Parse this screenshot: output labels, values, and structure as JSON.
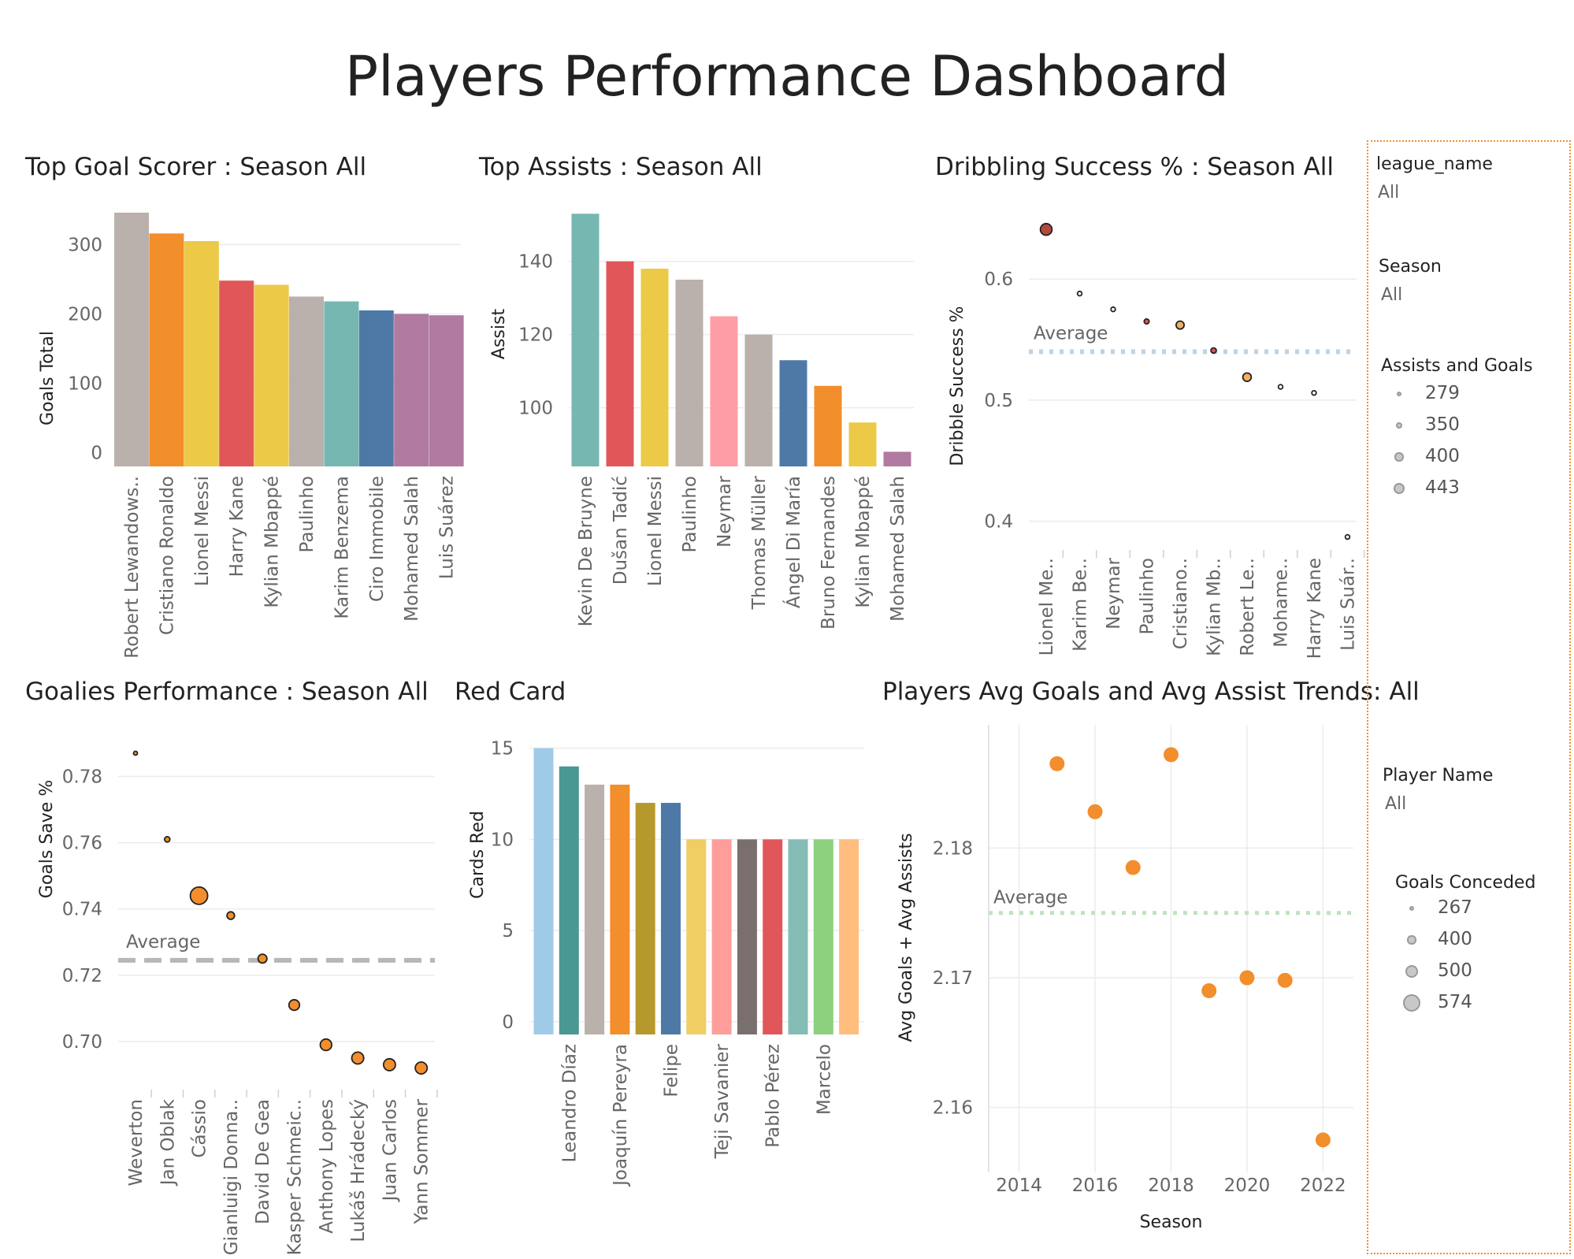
{
  "title": "Players Performance Dashboard",
  "colors": {
    "grid": "#ececec",
    "avg_blue": "#bcd4e6",
    "avg_gray": "#b7b7b7",
    "avg_green": "#bfe3bf",
    "dot_orange": "#f28e2b",
    "dot_red": "#b54a3c",
    "filter_border": "#f28e2b"
  },
  "filters": {
    "league": {
      "title": "league_name",
      "value": "All"
    },
    "season": {
      "title": "Season",
      "value": "All"
    },
    "assists_goals_legend": {
      "title": "Assists and Goals",
      "items": [
        "279",
        "350",
        "400",
        "443"
      ]
    },
    "player": {
      "title": "Player Name",
      "value": "All"
    },
    "goals_conceded_legend": {
      "title": "Goals Conceded",
      "items": [
        "267",
        "400",
        "500",
        "574"
      ]
    }
  },
  "chart_data": [
    {
      "id": "top-goal-scorer",
      "type": "bar",
      "title": "Top Goal Scorer : Season All",
      "ylabel": "Goals Total",
      "ylim": [
        -20,
        355
      ],
      "yticks": [
        "0",
        "100",
        "200",
        "300"
      ],
      "categories": [
        "Robert Lewandows..",
        "Cristiano Ronaldo",
        "Lionel Messi",
        "Harry Kane",
        "Kylian Mbappé",
        "Paulinho",
        "Karim Benzema",
        "Ciro Immobile",
        "Mohamed Salah",
        "Luis Suárez"
      ],
      "values": [
        346,
        316,
        305,
        248,
        242,
        225,
        218,
        205,
        200,
        198
      ],
      "colors": [
        "#bab0ac",
        "#f28e2b",
        "#edc948",
        "#e15759",
        "#edc948",
        "#bab0ac",
        "#76b7b2",
        "#4e79a7",
        "#b07aa1",
        "#b07aa1"
      ]
    },
    {
      "id": "top-assists",
      "type": "bar",
      "title": "Top Assists : Season All",
      "ylabel": "Assist",
      "ylim": [
        84,
        155
      ],
      "yticks": [
        "100",
        "120",
        "140"
      ],
      "categories": [
        "Kevin De Bruyne",
        "Dušan Tadić",
        "Lionel Messi",
        "Paulinho",
        "Neymar",
        "Thomas Müller",
        "Ángel Di María",
        "Bruno Fernandes",
        "Kylian Mbappé",
        "Mohamed Salah"
      ],
      "values": [
        153,
        140,
        138,
        135,
        125,
        120,
        113,
        106,
        96,
        88
      ],
      "colors": [
        "#76b7b2",
        "#e15759",
        "#edc948",
        "#bab0ac",
        "#ff9da7",
        "#bab0ac",
        "#4e79a7",
        "#f28e2b",
        "#edc948",
        "#b07aa1"
      ]
    },
    {
      "id": "dribbling-success",
      "type": "scatter",
      "title": "Dribbling Success % : Season All",
      "ylabel": "Dribble Success %",
      "ylim": [
        0.375,
        0.66
      ],
      "yticks": [
        "0.4",
        "0.5",
        "0.6"
      ],
      "categories": [
        "Lionel Me..",
        "Karim Be..",
        "Neymar",
        "Paulinho",
        "Cristiano..",
        "Kylian Mb..",
        "Robert Le..",
        "Mohame..",
        "Harry Kane",
        "Luis Suár.."
      ],
      "values": [
        0.641,
        0.588,
        0.575,
        0.565,
        0.562,
        0.541,
        0.519,
        0.511,
        0.506,
        0.387
      ],
      "sizes": [
        443,
        279,
        279,
        290,
        360,
        300,
        370,
        279,
        279,
        279
      ],
      "fills": [
        "#b54a3c",
        "#ffffff",
        "#ffffff",
        "#e15759",
        "#f0b060",
        "#e15759",
        "#f0b060",
        "#ffffff",
        "#ffffff",
        "#ffffff"
      ],
      "reference_line": {
        "label": "Average",
        "value": 0.54
      }
    },
    {
      "id": "goalies-performance",
      "type": "scatter",
      "title": "Goalies Performance  : Season All",
      "ylabel": "Goals Save %",
      "ylim": [
        0.685,
        0.792
      ],
      "yticks": [
        "0.70",
        "0.72",
        "0.74",
        "0.76",
        "0.78"
      ],
      "categories": [
        "Weverton",
        "Jan Oblak",
        "Cássio",
        "Gianluigi Donna..",
        "David De Gea",
        "Kasper Schmeic..",
        "Anthony Lopes",
        "Lukáš Hrádecký",
        "Juan Carlos",
        "Yann Sommer"
      ],
      "values": [
        0.787,
        0.761,
        0.744,
        0.738,
        0.725,
        0.711,
        0.699,
        0.695,
        0.693,
        0.692
      ],
      "sizes": [
        267,
        300,
        574,
        350,
        380,
        420,
        440,
        450,
        450,
        450
      ],
      "reference_line": {
        "label": "Average",
        "value": 0.7245
      }
    },
    {
      "id": "red-card",
      "type": "bar",
      "title": "Red Card",
      "ylabel": "Cards Red",
      "ylim": [
        -0.7,
        15.2
      ],
      "yticks": [
        "0",
        "5",
        "10",
        "15"
      ],
      "categories": [
        "",
        "Leandro Díaz",
        "",
        "Joaquín Pereyra",
        "",
        "Felipe",
        "",
        "Teji Savanier",
        "",
        "Pablo Pérez",
        "",
        "Marcelo",
        ""
      ],
      "values": [
        15,
        14,
        13,
        13,
        12,
        12,
        10,
        10,
        10,
        10,
        10,
        10,
        10
      ],
      "colors": [
        "#a0cbe8",
        "#499894",
        "#bab0ac",
        "#f28e2b",
        "#b6992d",
        "#4e79a7",
        "#f1ce63",
        "#ff9d9a",
        "#79706e",
        "#e15759",
        "#86bcb6",
        "#8cd17d",
        "#ffbe7d"
      ]
    },
    {
      "id": "avg-trends",
      "type": "scatter",
      "title": "Players Avg Goals and Avg Assist Trends: All",
      "xlabel": "Season",
      "ylabel": "Avg  Goals + Avg Assists",
      "xlim": [
        2013.2,
        2022.8
      ],
      "xticks": [
        "2014",
        "2016",
        "2018",
        "2020",
        "2022"
      ],
      "ylim": [
        2.155,
        2.1895
      ],
      "yticks": [
        "2.16",
        "2.17",
        "2.18"
      ],
      "x": [
        2015,
        2016,
        2017,
        2018,
        2019,
        2020,
        2021,
        2022
      ],
      "values": [
        2.1865,
        2.1828,
        2.1785,
        2.1872,
        2.169,
        2.17,
        2.1698,
        2.1575
      ],
      "reference_line": {
        "label": "Average",
        "value": 2.175
      }
    }
  ]
}
